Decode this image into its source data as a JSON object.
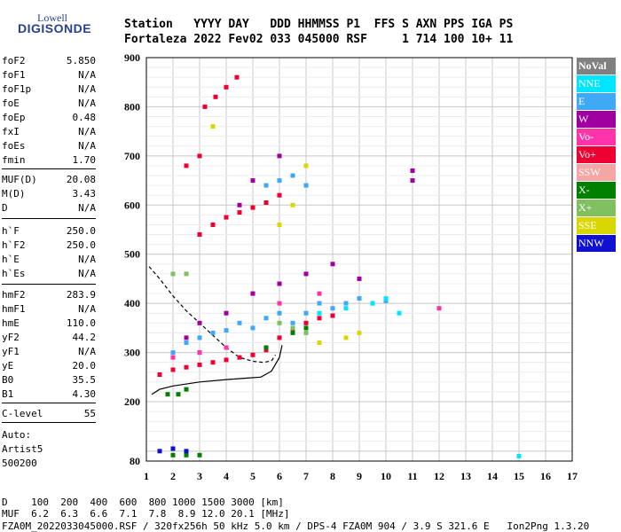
{
  "logo": {
    "line1": "Lowell",
    "line2": "DIGISONDE"
  },
  "header": {
    "row1": "Station   YYYY DAY   DDD HHMMSS P1  FFS S AXN PPS IGA PS",
    "row2": "Fortaleza 2022 Fev02 033 045000 RSF     1 714 100 10+ 11"
  },
  "params": [
    {
      "label": "foF2",
      "value": "5.850"
    },
    {
      "label": "foF1",
      "value": "N/A"
    },
    {
      "label": "foF1p",
      "value": "N/A"
    },
    {
      "label": "foE",
      "value": "N/A"
    },
    {
      "label": "foEp",
      "value": "0.48"
    },
    {
      "label": "fxI",
      "value": "N/A"
    },
    {
      "label": "foEs",
      "value": "N/A"
    },
    {
      "label": "fmin",
      "value": "1.70"
    },
    {
      "label": "MUF(D)",
      "value": "20.08"
    },
    {
      "label": "M(D)",
      "value": "3.43"
    },
    {
      "label": "D",
      "value": "N/A"
    },
    {
      "label": "h`F",
      "value": "250.0"
    },
    {
      "label": "h`F2",
      "value": "250.0"
    },
    {
      "label": "h`E",
      "value": "N/A"
    },
    {
      "label": "h`Es",
      "value": "N/A"
    },
    {
      "label": "hmF2",
      "value": "283.9"
    },
    {
      "label": "hmF1",
      "value": "N/A"
    },
    {
      "label": "hmE",
      "value": "110.0"
    },
    {
      "label": "yF2",
      "value": "44.2"
    },
    {
      "label": "yF1",
      "value": "N/A"
    },
    {
      "label": "yE",
      "value": "20.0"
    },
    {
      "label": "B0",
      "value": "35.5"
    },
    {
      "label": "B1",
      "value": "4.30"
    },
    {
      "label": "C-level",
      "value": "55"
    }
  ],
  "auto": {
    "line1": "Auto:",
    "line2": "Artist5",
    "line3": "500200"
  },
  "legend": [
    {
      "label": "NoVal",
      "color": "#808080"
    },
    {
      "label": "NNE",
      "color": "#00e5ff"
    },
    {
      "label": "E",
      "color": "#3fa9f5"
    },
    {
      "label": "W",
      "color": "#a000a0"
    },
    {
      "label": "Vo-",
      "color": "#ff33aa"
    },
    {
      "label": "Vo+",
      "color": "#ee0033"
    },
    {
      "label": "SSW",
      "color": "#f4a6a6"
    },
    {
      "label": "X-",
      "color": "#008000"
    },
    {
      "label": "X+",
      "color": "#80c060"
    },
    {
      "label": "SSE",
      "color": "#d8d800"
    },
    {
      "label": "NNW",
      "color": "#1010d0"
    }
  ],
  "chart_data": {
    "type": "scatter",
    "title": "",
    "xlabel": "",
    "ylabel": "",
    "xlim": [
      1,
      17
    ],
    "ylim": [
      80,
      900
    ],
    "x_ticks": [
      1,
      2,
      3,
      4,
      5,
      6,
      7,
      8,
      9,
      10,
      11,
      12,
      13,
      14,
      15,
      16,
      17
    ],
    "y_ticks": [
      80,
      200,
      300,
      400,
      500,
      600,
      700,
      800,
      900
    ],
    "grid": true,
    "series": [
      {
        "name": "Vo+",
        "color": "#ee0033",
        "points": [
          [
            1.5,
            255
          ],
          [
            2.0,
            265
          ],
          [
            2.5,
            270
          ],
          [
            3.0,
            275
          ],
          [
            3.5,
            280
          ],
          [
            4.0,
            285
          ],
          [
            4.5,
            290
          ],
          [
            5.0,
            295
          ],
          [
            5.5,
            305
          ],
          [
            6.0,
            330
          ],
          [
            6.5,
            345
          ],
          [
            7.0,
            360
          ],
          [
            7.5,
            370
          ],
          [
            8.0,
            375
          ],
          [
            3.0,
            540
          ],
          [
            3.5,
            560
          ],
          [
            4.0,
            575
          ],
          [
            4.5,
            585
          ],
          [
            5.0,
            595
          ],
          [
            5.5,
            605
          ],
          [
            6.0,
            620
          ],
          [
            3.2,
            800
          ],
          [
            3.6,
            820
          ],
          [
            4.0,
            840
          ],
          [
            4.4,
            860
          ],
          [
            2.5,
            680
          ],
          [
            3.0,
            700
          ]
        ]
      },
      {
        "name": "E",
        "color": "#3fa9f5",
        "points": [
          [
            2.0,
            300
          ],
          [
            2.5,
            320
          ],
          [
            3.0,
            330
          ],
          [
            3.5,
            340
          ],
          [
            4.0,
            345
          ],
          [
            4.5,
            360
          ],
          [
            5.0,
            350
          ],
          [
            5.5,
            370
          ],
          [
            6.0,
            380
          ],
          [
            6.5,
            360
          ],
          [
            7.0,
            380
          ],
          [
            7.5,
            400
          ],
          [
            8.0,
            390
          ],
          [
            8.5,
            400
          ],
          [
            9.0,
            410
          ],
          [
            9.5,
            400
          ],
          [
            10.0,
            405
          ],
          [
            5.5,
            640
          ],
          [
            6.0,
            650
          ],
          [
            6.5,
            660
          ],
          [
            7.0,
            640
          ]
        ]
      },
      {
        "name": "W",
        "color": "#a000a0",
        "points": [
          [
            2.5,
            330
          ],
          [
            3.0,
            360
          ],
          [
            4.0,
            380
          ],
          [
            5.0,
            420
          ],
          [
            6.0,
            440
          ],
          [
            7.0,
            460
          ],
          [
            8.0,
            480
          ],
          [
            9.0,
            450
          ],
          [
            5.0,
            650
          ],
          [
            6.0,
            700
          ],
          [
            11.0,
            650
          ],
          [
            11.0,
            670
          ],
          [
            4.5,
            600
          ]
        ]
      },
      {
        "name": "X-",
        "color": "#008000",
        "points": [
          [
            1.8,
            215
          ],
          [
            2.2,
            215
          ],
          [
            2.5,
            225
          ],
          [
            2.0,
            92
          ],
          [
            2.5,
            92
          ],
          [
            3.0,
            92
          ],
          [
            5.5,
            310
          ],
          [
            6.5,
            340
          ],
          [
            7.0,
            350
          ]
        ]
      },
      {
        "name": "NNE",
        "color": "#00e5ff",
        "points": [
          [
            7.5,
            380
          ],
          [
            8.5,
            390
          ],
          [
            9.5,
            400
          ],
          [
            10.0,
            410
          ],
          [
            10.5,
            380
          ],
          [
            15.0,
            90
          ]
        ]
      },
      {
        "name": "SSE",
        "color": "#d8d800",
        "points": [
          [
            6.5,
            600
          ],
          [
            7.0,
            680
          ],
          [
            6.0,
            560
          ],
          [
            3.5,
            760
          ],
          [
            7.5,
            320
          ],
          [
            8.5,
            330
          ],
          [
            9.0,
            340
          ]
        ]
      },
      {
        "name": "NNW",
        "color": "#1010d0",
        "points": [
          [
            1.5,
            100
          ],
          [
            2.0,
            105
          ],
          [
            2.5,
            100
          ],
          [
            3.0,
            300
          ],
          [
            4.0,
            310
          ]
        ]
      },
      {
        "name": "Vo-",
        "color": "#ff33aa",
        "points": [
          [
            2.0,
            290
          ],
          [
            3.0,
            300
          ],
          [
            4.0,
            310
          ],
          [
            6.0,
            400
          ],
          [
            7.5,
            420
          ],
          [
            12.0,
            390
          ]
        ]
      },
      {
        "name": "X+",
        "color": "#80c060",
        "points": [
          [
            6.0,
            360
          ],
          [
            6.5,
            350
          ],
          [
            7.0,
            340
          ],
          [
            2.0,
            460
          ],
          [
            2.5,
            460
          ]
        ]
      }
    ],
    "profile_solid": [
      [
        1.2,
        215
      ],
      [
        1.5,
        225
      ],
      [
        2.0,
        232
      ],
      [
        3.0,
        240
      ],
      [
        4.0,
        245
      ],
      [
        4.8,
        248
      ],
      [
        5.3,
        250
      ],
      [
        5.7,
        262
      ],
      [
        6.0,
        290
      ],
      [
        6.1,
        315
      ]
    ],
    "profile_dashed": [
      [
        1.1,
        475
      ],
      [
        1.5,
        450
      ],
      [
        2.0,
        415
      ],
      [
        2.5,
        385
      ],
      [
        3.0,
        360
      ],
      [
        3.5,
        335
      ],
      [
        4.0,
        310
      ],
      [
        4.5,
        290
      ],
      [
        5.0,
        282
      ],
      [
        5.4,
        280
      ],
      [
        5.7,
        283
      ],
      [
        5.85,
        295
      ]
    ]
  },
  "footer": {
    "d_line": "D    100  200  400  600  800 1000 1500 3000 [km]",
    "muf_line": "MUF  6.2  6.3  6.6  7.1  7.8  8.9 12.0 20.1 [MHz]",
    "file_line": "FZA0M_2022033045000.RSF / 320fx256h 50 kHz 5.0 km / DPS-4 FZA0M 904 / 3.9 S 321.6 E   Ion2Png 1.3.20"
  }
}
